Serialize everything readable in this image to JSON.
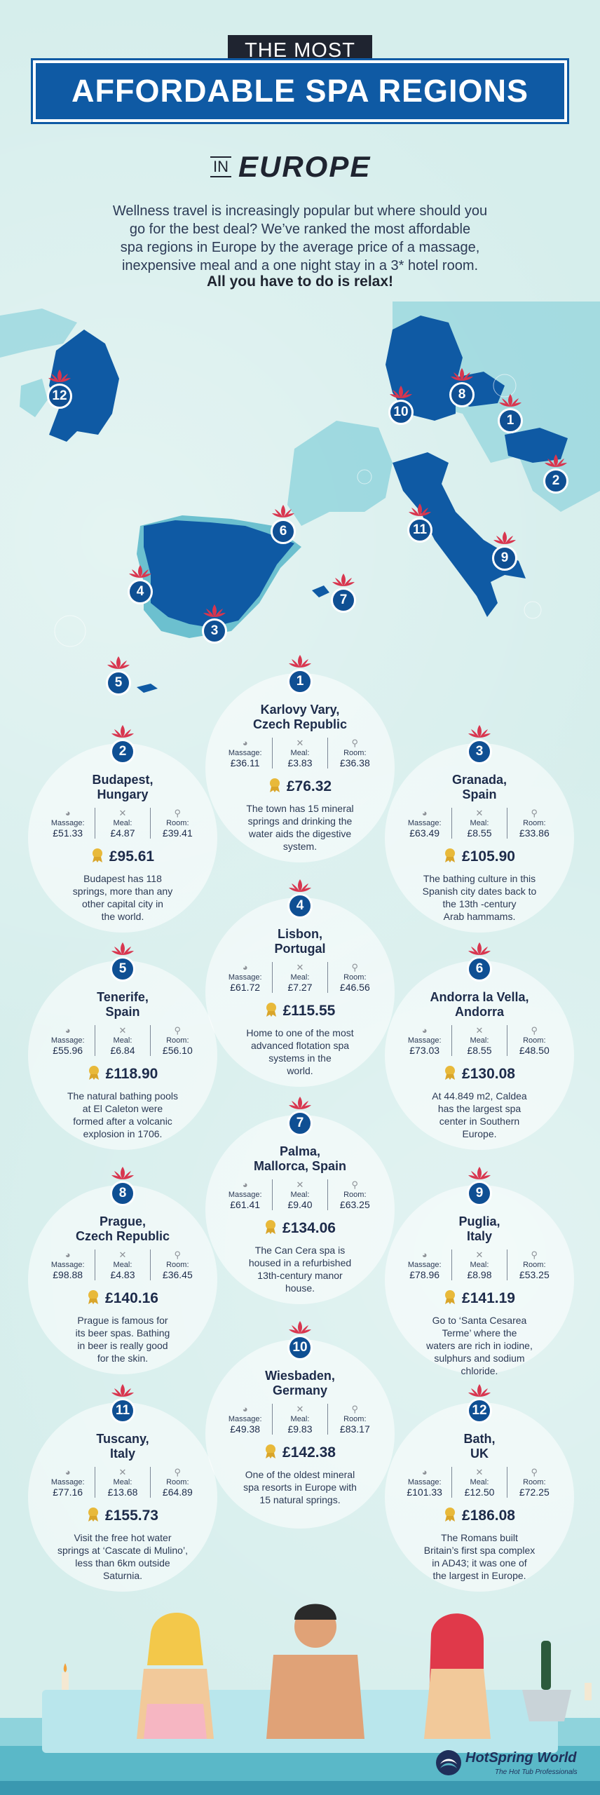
{
  "header": {
    "kicker": "THE MOST",
    "title": "AFFORDABLE SPA REGIONS",
    "in_word": "IN",
    "region": "EUROPE",
    "intro_lines": [
      "Wellness travel is increasingly popular but where should you",
      "go for the best deal? We’ve ranked the most affordable",
      "spa regions in Europe by the average price of a massage,",
      "inexpensive meal and a one night stay in a 3* hotel room."
    ],
    "intro_bold": "All you have to do is relax!"
  },
  "labels": {
    "massage": "Massage:",
    "meal": "Meal:",
    "room": "Room:"
  },
  "map_markers": [
    "1",
    "2",
    "3",
    "4",
    "5",
    "6",
    "7",
    "8",
    "9",
    "10",
    "11",
    "12"
  ],
  "colors": {
    "brand_blue": "#0f5aa4",
    "marker_blue": "#0f4f93",
    "lotus_red": "#d8364f",
    "medal_gold": "#e8b93a",
    "map_land": "#6cc0cf",
    "map_highlight": "#0f5aa4"
  },
  "regions": [
    {
      "rank": "1",
      "city": [
        "Karlovy Vary,",
        "Czech Republic"
      ],
      "massage": "£36.11",
      "meal": "£3.83",
      "room": "£36.38",
      "total": "£76.32",
      "desc": [
        "The town has 15 mineral",
        "springs and drinking the",
        "water aids the digestive",
        "system."
      ]
    },
    {
      "rank": "2",
      "city": [
        "Budapest,",
        "Hungary"
      ],
      "massage": "£51.33",
      "meal": "£4.87",
      "room": "£39.41",
      "total": "£95.61",
      "desc": [
        "Budapest has 118",
        "springs, more than any",
        "other capital city in",
        "the world."
      ]
    },
    {
      "rank": "3",
      "city": [
        "Granada,",
        "Spain"
      ],
      "massage": "£63.49",
      "meal": "£8.55",
      "room": "£33.86",
      "total": "£105.90",
      "desc": [
        "The bathing culture in this",
        "Spanish city dates back to",
        "the 13th -century",
        "Arab hammams."
      ]
    },
    {
      "rank": "4",
      "city": [
        "Lisbon,",
        "Portugal"
      ],
      "massage": "£61.72",
      "meal": "£7.27",
      "room": "£46.56",
      "total": "£115.55",
      "desc": [
        "Home to one of the most",
        "advanced flotation spa",
        "systems in the",
        "world."
      ]
    },
    {
      "rank": "5",
      "city": [
        "Tenerife,",
        "Spain"
      ],
      "massage": "£55.96",
      "meal": "£6.84",
      "room": "£56.10",
      "total": "£118.90",
      "desc": [
        "The natural bathing pools",
        "at El Caleton were",
        "formed after a volcanic",
        "explosion in 1706."
      ]
    },
    {
      "rank": "6",
      "city": [
        "Andorra la Vella,",
        "Andorra"
      ],
      "massage": "£73.03",
      "meal": "£8.55",
      "room": "£48.50",
      "total": "£130.08",
      "desc": [
        "At 44.849 m2, Caldea",
        "has the largest spa",
        "center in Southern",
        "Europe."
      ]
    },
    {
      "rank": "7",
      "city": [
        "Palma,",
        "Mallorca, Spain"
      ],
      "massage": "£61.41",
      "meal": "£9.40",
      "room": "£63.25",
      "total": "£134.06",
      "desc": [
        "The Can Cera spa is",
        "housed in a refurbished",
        "13th-century manor",
        "house."
      ]
    },
    {
      "rank": "8",
      "city": [
        "Prague,",
        "Czech Republic"
      ],
      "massage": "£98.88",
      "meal": "£4.83",
      "room": "£36.45",
      "total": "£140.16",
      "desc": [
        "Prague is famous for",
        "its beer spas. Bathing",
        "in beer is really good",
        "for the skin."
      ]
    },
    {
      "rank": "9",
      "city": [
        "Puglia,",
        "Italy"
      ],
      "massage": "£78.96",
      "meal": "£8.98",
      "room": "£53.25",
      "total": "£141.19",
      "desc": [
        "Go to ‘Santa Cesarea",
        "Terme’ where the",
        "waters are rich in iodine,",
        "sulphurs and sodium",
        "chloride."
      ]
    },
    {
      "rank": "10",
      "city": [
        "Wiesbaden,",
        "Germany"
      ],
      "massage": "£49.38",
      "meal": "£9.83",
      "room": "£83.17",
      "total": "£142.38",
      "desc": [
        "One of the oldest mineral",
        "spa resorts in Europe with",
        "15 natural springs."
      ]
    },
    {
      "rank": "11",
      "city": [
        "Tuscany,",
        "Italy"
      ],
      "massage": "£77.16",
      "meal": "£13.68",
      "room": "£64.89",
      "total": "£155.73",
      "desc": [
        "Visit the free hot water",
        "springs at ‘Cascate di Mulino’,",
        "less than 6km outside",
        "Saturnia."
      ]
    },
    {
      "rank": "12",
      "city": [
        "Bath,",
        "UK"
      ],
      "massage": "£101.33",
      "meal": "£12.50",
      "room": "£72.25",
      "total": "£186.08",
      "desc": [
        "The Romans built",
        "Britain’s first spa complex",
        "in AD43; it was one of",
        "the largest in Europe."
      ]
    }
  ],
  "footer": {
    "brand": "HotSpring World",
    "tagline": "The Hot Tub Professionals",
    "logo_icon": "hotspring-swirl-icon"
  }
}
